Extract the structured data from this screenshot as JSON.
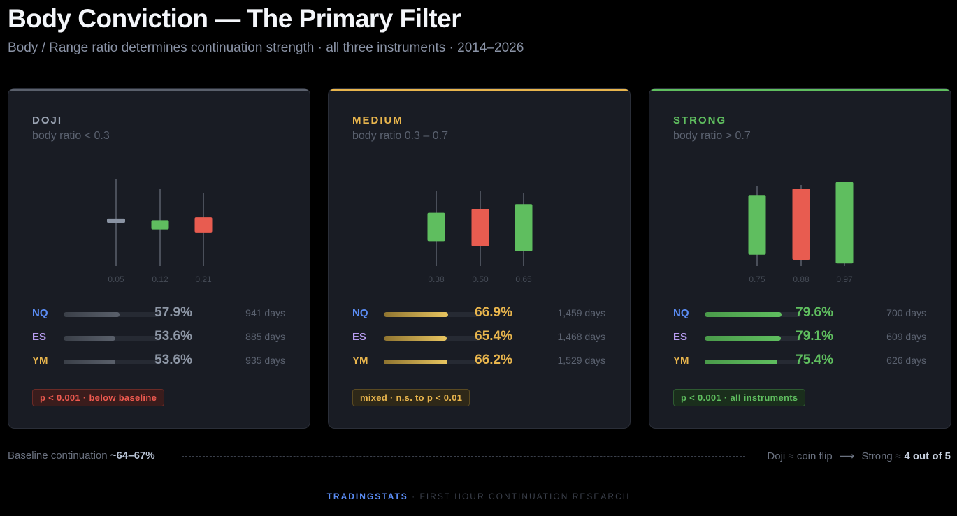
{
  "title": "Body Conviction — The Primary Filter",
  "subtitle": "Body / Range ratio determines continuation strength · all three instruments · 2014–2026",
  "colors": {
    "doji": "#9aa3b2",
    "medium": "#e8b54d",
    "strong": "#5fbe5f",
    "bull": "#5fbe5f",
    "bear": "#e85c50",
    "neutral": "#8a93a3",
    "NQ": "#5b8df5",
    "ES": "#b79cf0",
    "YM": "#e8b54d"
  },
  "chart_data": [
    {
      "type": "bar",
      "key": "doji",
      "label": "DOJI",
      "sublabel": "body ratio < 0.3",
      "candles": [
        {
          "ratio_label": "0.05",
          "ratio": 0.05,
          "dir": "neutral"
        },
        {
          "ratio_label": "0.12",
          "ratio": 0.12,
          "dir": "bull"
        },
        {
          "ratio_label": "0.21",
          "ratio": 0.21,
          "dir": "bear"
        }
      ],
      "rows": [
        {
          "ticker": "NQ",
          "pct": 57.9,
          "pct_label": "57.9%",
          "days": "941 days"
        },
        {
          "ticker": "ES",
          "pct": 53.6,
          "pct_label": "53.6%",
          "days": "885 days"
        },
        {
          "ticker": "YM",
          "pct": 53.6,
          "pct_label": "53.6%",
          "days": "935 days"
        }
      ],
      "badge": "p < 0.001 · below baseline"
    },
    {
      "type": "bar",
      "key": "medium",
      "label": "MEDIUM",
      "sublabel": "body ratio 0.3 – 0.7",
      "candles": [
        {
          "ratio_label": "0.38",
          "ratio": 0.38,
          "dir": "bull"
        },
        {
          "ratio_label": "0.50",
          "ratio": 0.5,
          "dir": "bear"
        },
        {
          "ratio_label": "0.65",
          "ratio": 0.65,
          "dir": "bull"
        }
      ],
      "rows": [
        {
          "ticker": "NQ",
          "pct": 66.9,
          "pct_label": "66.9%",
          "days": "1,459 days"
        },
        {
          "ticker": "ES",
          "pct": 65.4,
          "pct_label": "65.4%",
          "days": "1,468 days"
        },
        {
          "ticker": "YM",
          "pct": 66.2,
          "pct_label": "66.2%",
          "days": "1,529 days"
        }
      ],
      "badge": "mixed · n.s. to p < 0.01"
    },
    {
      "type": "bar",
      "key": "strong",
      "label": "STRONG",
      "sublabel": "body ratio > 0.7",
      "candles": [
        {
          "ratio_label": "0.75",
          "ratio": 0.75,
          "dir": "bull"
        },
        {
          "ratio_label": "0.88",
          "ratio": 0.88,
          "dir": "bear"
        },
        {
          "ratio_label": "0.97",
          "ratio": 0.97,
          "dir": "bull"
        }
      ],
      "rows": [
        {
          "ticker": "NQ",
          "pct": 79.6,
          "pct_label": "79.6%",
          "days": "700 days"
        },
        {
          "ticker": "ES",
          "pct": 79.1,
          "pct_label": "79.1%",
          "days": "609 days"
        },
        {
          "ticker": "YM",
          "pct": 75.4,
          "pct_label": "75.4%",
          "days": "626 days"
        }
      ],
      "badge": "p < 0.001 · all instruments"
    }
  ],
  "footer": {
    "baseline_label": "Baseline continuation",
    "baseline_value": "~64–67%",
    "right_a": "Doji ≈ coin flip",
    "arrow": "⟶",
    "right_b": "Strong ≈",
    "right_value": "4 out of 5"
  },
  "brand": {
    "name": "TRADINGSTATS",
    "sep": "·",
    "tagline": "FIRST HOUR CONTINUATION RESEARCH"
  }
}
